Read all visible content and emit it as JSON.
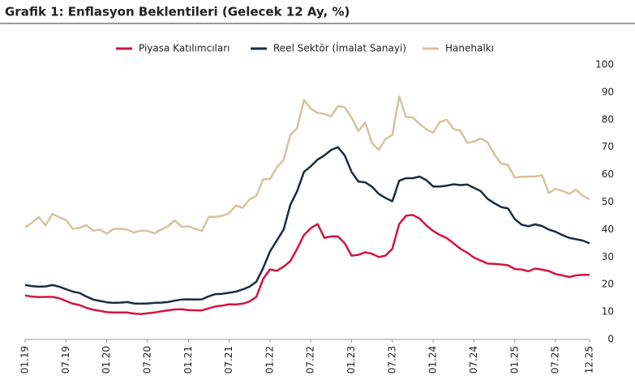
{
  "chart_data": {
    "type": "line",
    "title": "Grafik 1: Enflasyon Beklentileri (Gelecek 12 Ay, %)",
    "categories": [
      "01.19",
      null,
      null,
      null,
      null,
      null,
      "07.19",
      null,
      null,
      null,
      null,
      null,
      "01.20",
      null,
      null,
      null,
      null,
      null,
      "07.20",
      null,
      null,
      null,
      null,
      null,
      "01.21",
      null,
      null,
      null,
      null,
      null,
      "07.21",
      null,
      null,
      null,
      null,
      null,
      "01.22",
      null,
      null,
      null,
      null,
      null,
      "07.22",
      null,
      null,
      null,
      null,
      null,
      "01.23",
      null,
      null,
      null,
      null,
      null,
      "07.23",
      null,
      null,
      null,
      null,
      null,
      "01.24",
      null,
      null,
      null,
      null,
      null,
      "07.24",
      null,
      null,
      null,
      null,
      null,
      "01.25",
      null,
      null,
      null,
      null,
      null,
      "07.25",
      null,
      null,
      null,
      null,
      "12.25"
    ],
    "series": [
      {
        "name": "Piyasa Katılımcıları",
        "color": "#d4143f",
        "values": [
          16,
          15.6,
          15.4,
          15.5,
          15.5,
          15,
          14,
          13,
          12.5,
          11.5,
          10.8,
          10.4,
          9.9,
          9.8,
          9.8,
          9.8,
          9.4,
          9.2,
          9.5,
          9.8,
          10.2,
          10.6,
          10.9,
          11,
          10.7,
          10.6,
          10.6,
          11.3,
          12,
          12.3,
          12.8,
          12.7,
          13,
          13.8,
          15.5,
          22,
          25.5,
          25,
          26.5,
          28.5,
          33,
          38,
          40.5,
          42,
          37,
          37.5,
          37.5,
          35,
          30.5,
          30.8,
          31.7,
          31.2,
          30,
          30.5,
          33,
          42,
          45,
          45.3,
          44,
          41.5,
          39.5,
          38,
          36.9,
          35,
          33,
          31.6,
          29.8,
          28.7,
          27.6,
          27.5,
          27.3,
          27,
          25.6,
          25.5,
          24.8,
          25.8,
          25.4,
          24.9,
          23.8,
          23.3,
          22.7,
          23.3,
          23.5,
          23.5
        ]
      },
      {
        "name": "Reel Sektör (İmalat Sanayi)",
        "color": "#1c2b3e",
        "values": [
          19.8,
          19.4,
          19.2,
          19.3,
          19.8,
          19.2,
          18.3,
          17.4,
          16.9,
          15.6,
          14.5,
          14,
          13.5,
          13.3,
          13.4,
          13.6,
          13.1,
          13,
          13.1,
          13.3,
          13.4,
          13.6,
          14.1,
          14.5,
          14.6,
          14.5,
          14.6,
          15.7,
          16.5,
          16.6,
          17,
          17.4,
          18.2,
          19.2,
          21,
          26,
          32,
          36,
          40,
          49,
          54,
          61,
          63,
          65.5,
          67,
          69,
          70,
          67,
          61,
          57.5,
          57.2,
          55.6,
          53,
          51.5,
          50.3,
          57.8,
          58.7,
          58.7,
          59.3,
          58,
          55.7,
          55.7,
          56,
          56.5,
          56.2,
          56.4,
          55.2,
          54,
          51.2,
          49.6,
          48.2,
          47.7,
          43.8,
          41.8,
          41.2,
          41.9,
          41.3,
          40,
          39.2,
          38,
          37,
          36.5,
          36,
          35
        ]
      },
      {
        "name": "Hanehalkı",
        "color": "#d8c29d",
        "values": [
          40.8,
          42.5,
          44.5,
          41.5,
          45.7,
          44.5,
          43.5,
          40.3,
          40.6,
          41.6,
          39.6,
          40,
          38.5,
          40.2,
          40.3,
          40,
          38.9,
          39.6,
          39.5,
          38.6,
          40,
          41.2,
          43.4,
          41,
          41.2,
          40.3,
          39.5,
          44.6,
          44.6,
          45,
          46,
          48.8,
          47.9,
          51,
          52.2,
          58.3,
          58.4,
          62.6,
          65.4,
          74.4,
          77,
          87.2,
          84.1,
          82.5,
          82.1,
          81.2,
          85,
          84.5,
          80.8,
          75.8,
          79,
          71.5,
          69,
          73,
          74.5,
          88.5,
          81,
          80.8,
          78.5,
          76.5,
          75.3,
          79.2,
          80,
          76.6,
          76,
          71.6,
          72,
          73.2,
          71.8,
          67.4,
          64,
          63.5,
          58.9,
          59.2,
          59.3,
          59.3,
          59.8,
          53.3,
          54.8,
          54.1,
          53,
          54.5,
          52.3,
          51
        ]
      }
    ],
    "ylim": [
      0,
      100
    ],
    "yticks": [
      0,
      10,
      20,
      30,
      40,
      50,
      60,
      70,
      80,
      90,
      100
    ],
    "grid": false
  }
}
